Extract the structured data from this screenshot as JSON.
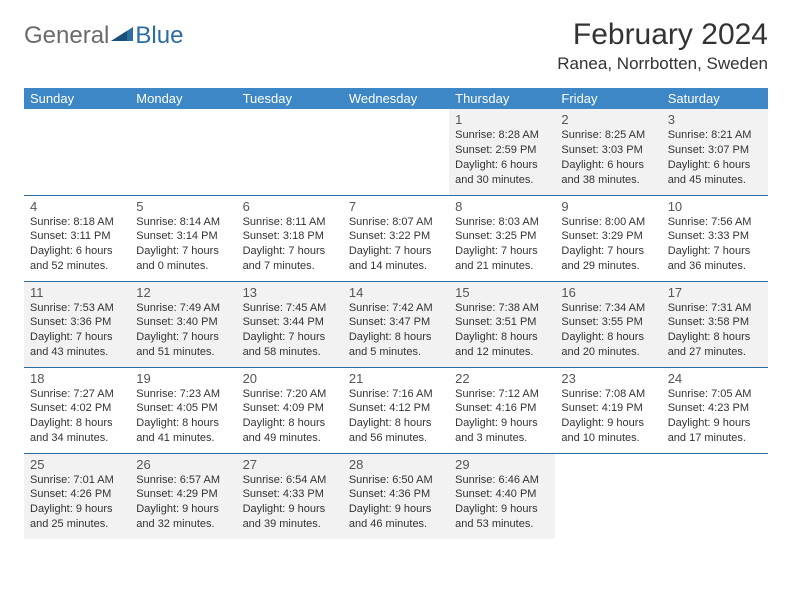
{
  "logo": {
    "word1": "General",
    "word2": "Blue"
  },
  "title": "February 2024",
  "location": "Ranea, Norrbotten, Sweden",
  "colors": {
    "header_bg": "#3d87c7",
    "header_text": "#ffffff",
    "row_border": "#2b6ca3",
    "shade_bg": "#f2f2f2",
    "text": "#333333",
    "logo_gray": "#6b6b6b",
    "logo_blue": "#2b6ca3"
  },
  "dow": [
    "Sunday",
    "Monday",
    "Tuesday",
    "Wednesday",
    "Thursday",
    "Friday",
    "Saturday"
  ],
  "weeks": [
    [
      null,
      null,
      null,
      null,
      {
        "n": "1",
        "sr": "8:28 AM",
        "ss": "2:59 PM",
        "dl1": "6 hours",
        "dl2": "and 30 minutes."
      },
      {
        "n": "2",
        "sr": "8:25 AM",
        "ss": "3:03 PM",
        "dl1": "6 hours",
        "dl2": "and 38 minutes."
      },
      {
        "n": "3",
        "sr": "8:21 AM",
        "ss": "3:07 PM",
        "dl1": "6 hours",
        "dl2": "and 45 minutes."
      }
    ],
    [
      {
        "n": "4",
        "sr": "8:18 AM",
        "ss": "3:11 PM",
        "dl1": "6 hours",
        "dl2": "and 52 minutes."
      },
      {
        "n": "5",
        "sr": "8:14 AM",
        "ss": "3:14 PM",
        "dl1": "7 hours",
        "dl2": "and 0 minutes."
      },
      {
        "n": "6",
        "sr": "8:11 AM",
        "ss": "3:18 PM",
        "dl1": "7 hours",
        "dl2": "and 7 minutes."
      },
      {
        "n": "7",
        "sr": "8:07 AM",
        "ss": "3:22 PM",
        "dl1": "7 hours",
        "dl2": "and 14 minutes."
      },
      {
        "n": "8",
        "sr": "8:03 AM",
        "ss": "3:25 PM",
        "dl1": "7 hours",
        "dl2": "and 21 minutes."
      },
      {
        "n": "9",
        "sr": "8:00 AM",
        "ss": "3:29 PM",
        "dl1": "7 hours",
        "dl2": "and 29 minutes."
      },
      {
        "n": "10",
        "sr": "7:56 AM",
        "ss": "3:33 PM",
        "dl1": "7 hours",
        "dl2": "and 36 minutes."
      }
    ],
    [
      {
        "n": "11",
        "sr": "7:53 AM",
        "ss": "3:36 PM",
        "dl1": "7 hours",
        "dl2": "and 43 minutes."
      },
      {
        "n": "12",
        "sr": "7:49 AM",
        "ss": "3:40 PM",
        "dl1": "7 hours",
        "dl2": "and 51 minutes."
      },
      {
        "n": "13",
        "sr": "7:45 AM",
        "ss": "3:44 PM",
        "dl1": "7 hours",
        "dl2": "and 58 minutes."
      },
      {
        "n": "14",
        "sr": "7:42 AM",
        "ss": "3:47 PM",
        "dl1": "8 hours",
        "dl2": "and 5 minutes."
      },
      {
        "n": "15",
        "sr": "7:38 AM",
        "ss": "3:51 PM",
        "dl1": "8 hours",
        "dl2": "and 12 minutes."
      },
      {
        "n": "16",
        "sr": "7:34 AM",
        "ss": "3:55 PM",
        "dl1": "8 hours",
        "dl2": "and 20 minutes."
      },
      {
        "n": "17",
        "sr": "7:31 AM",
        "ss": "3:58 PM",
        "dl1": "8 hours",
        "dl2": "and 27 minutes."
      }
    ],
    [
      {
        "n": "18",
        "sr": "7:27 AM",
        "ss": "4:02 PM",
        "dl1": "8 hours",
        "dl2": "and 34 minutes."
      },
      {
        "n": "19",
        "sr": "7:23 AM",
        "ss": "4:05 PM",
        "dl1": "8 hours",
        "dl2": "and 41 minutes."
      },
      {
        "n": "20",
        "sr": "7:20 AM",
        "ss": "4:09 PM",
        "dl1": "8 hours",
        "dl2": "and 49 minutes."
      },
      {
        "n": "21",
        "sr": "7:16 AM",
        "ss": "4:12 PM",
        "dl1": "8 hours",
        "dl2": "and 56 minutes."
      },
      {
        "n": "22",
        "sr": "7:12 AM",
        "ss": "4:16 PM",
        "dl1": "9 hours",
        "dl2": "and 3 minutes."
      },
      {
        "n": "23",
        "sr": "7:08 AM",
        "ss": "4:19 PM",
        "dl1": "9 hours",
        "dl2": "and 10 minutes."
      },
      {
        "n": "24",
        "sr": "7:05 AM",
        "ss": "4:23 PM",
        "dl1": "9 hours",
        "dl2": "and 17 minutes."
      }
    ],
    [
      {
        "n": "25",
        "sr": "7:01 AM",
        "ss": "4:26 PM",
        "dl1": "9 hours",
        "dl2": "and 25 minutes."
      },
      {
        "n": "26",
        "sr": "6:57 AM",
        "ss": "4:29 PM",
        "dl1": "9 hours",
        "dl2": "and 32 minutes."
      },
      {
        "n": "27",
        "sr": "6:54 AM",
        "ss": "4:33 PM",
        "dl1": "9 hours",
        "dl2": "and 39 minutes."
      },
      {
        "n": "28",
        "sr": "6:50 AM",
        "ss": "4:36 PM",
        "dl1": "9 hours",
        "dl2": "and 46 minutes."
      },
      {
        "n": "29",
        "sr": "6:46 AM",
        "ss": "4:40 PM",
        "dl1": "9 hours",
        "dl2": "and 53 minutes."
      },
      null,
      null
    ]
  ],
  "labels": {
    "sunrise": "Sunrise:",
    "sunset": "Sunset:",
    "daylight": "Daylight:"
  }
}
